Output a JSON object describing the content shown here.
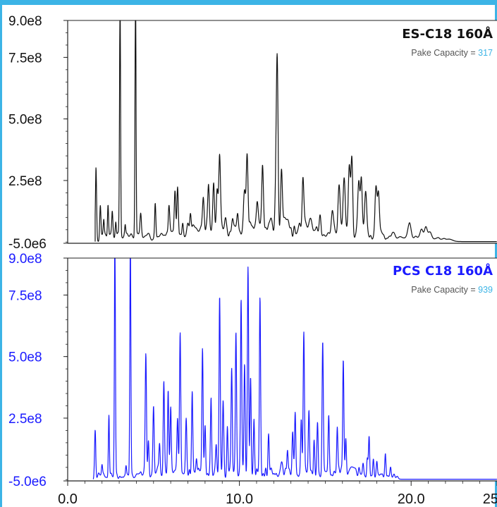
{
  "colors": {
    "frame": "#3cb4e6",
    "series_top": "#111111",
    "series_bottom": "#1a1aff",
    "capacity_value": "#3cb4e6"
  },
  "chart_data": [
    {
      "type": "line",
      "title": "ES-C18 160Å",
      "annotation_label": "Pake Capacity = ",
      "annotation_value": "317",
      "xlim": [
        0,
        25
      ],
      "ylim": [
        -5000000,
        900000000
      ],
      "yticks": [
        -5000000,
        250000000,
        500000000,
        750000000,
        900000000
      ],
      "ytick_labels": [
        "-5.0e6",
        "2.5e8",
        "5.0e8",
        "7.5e8",
        "9.0e8"
      ],
      "ytick_color": "#111111",
      "series": [
        {
          "color": "#111111",
          "baseline": 2000000,
          "x_start": 1.6,
          "x_end": 25,
          "peaks": [
            [
              1.65,
              300000000,
              0.035
            ],
            [
              1.9,
              140000000,
              0.035
            ],
            [
              2.1,
              60000000,
              0.03
            ],
            [
              2.35,
              130000000,
              0.03
            ],
            [
              2.6,
              90000000,
              0.035
            ],
            [
              2.8,
              60000000,
              0.03
            ],
            [
              3.05,
              1000000000,
              0.03
            ],
            [
              3.35,
              40000000,
              0.03
            ],
            [
              3.95,
              1000000000,
              0.03
            ],
            [
              4.25,
              80000000,
              0.04
            ],
            [
              5.1,
              140000000,
              0.035
            ],
            [
              5.9,
              110000000,
              0.04
            ],
            [
              6.25,
              170000000,
              0.04
            ],
            [
              6.4,
              200000000,
              0.04
            ],
            [
              6.7,
              60000000,
              0.04
            ],
            [
              7.15,
              80000000,
              0.04
            ],
            [
              7.9,
              130000000,
              0.05
            ],
            [
              8.2,
              200000000,
              0.05
            ],
            [
              8.5,
              190000000,
              0.05
            ],
            [
              8.7,
              180000000,
              0.05
            ],
            [
              8.85,
              300000000,
              0.05
            ],
            [
              9.2,
              80000000,
              0.05
            ],
            [
              9.6,
              60000000,
              0.05
            ],
            [
              9.9,
              90000000,
              0.05
            ],
            [
              10.3,
              160000000,
              0.06
            ],
            [
              10.45,
              320000000,
              0.05
            ],
            [
              11.05,
              80000000,
              0.06
            ],
            [
              11.35,
              260000000,
              0.05
            ],
            [
              12.1,
              120000000,
              0.05
            ],
            [
              12.2,
              700000000,
              0.05
            ],
            [
              12.45,
              250000000,
              0.05
            ],
            [
              13.7,
              200000000,
              0.05
            ],
            [
              14.7,
              80000000,
              0.05
            ],
            [
              15.4,
              80000000,
              0.06
            ],
            [
              15.8,
              200000000,
              0.06
            ],
            [
              16.1,
              210000000,
              0.06
            ],
            [
              16.4,
              270000000,
              0.06
            ],
            [
              16.55,
              300000000,
              0.05
            ],
            [
              16.95,
              210000000,
              0.06
            ],
            [
              17.1,
              210000000,
              0.05
            ],
            [
              17.35,
              180000000,
              0.06
            ],
            [
              17.95,
              200000000,
              0.06
            ],
            [
              18.1,
              140000000,
              0.05
            ],
            [
              19.9,
              60000000,
              0.1
            ],
            [
              20.6,
              40000000,
              0.08
            ],
            [
              20.85,
              50000000,
              0.08
            ],
            [
              21.1,
              25000000,
              0.1
            ],
            [
              22.2,
              10000000,
              0.2
            ]
          ],
          "noise": [
            [
              2.0,
              7.0,
              25000000,
              0.08
            ],
            [
              7.0,
              14.5,
              60000000,
              0.08
            ],
            [
              14.5,
              19.0,
              35000000,
              0.08
            ],
            [
              19.0,
              22.0,
              12000000,
              0.1
            ]
          ]
        }
      ]
    },
    {
      "type": "line",
      "title": "PCS C18 160Å",
      "annotation_label": "Pake Capacity = ",
      "annotation_value": "939",
      "xlim": [
        0,
        25
      ],
      "ylim": [
        -5000000,
        900000000
      ],
      "yticks": [
        -5000000,
        250000000,
        500000000,
        750000000,
        900000000
      ],
      "ytick_labels": [
        "-5.0e6",
        "2.5e8",
        "5.0e8",
        "7.5e8",
        "9.0e8"
      ],
      "ytick_color": "#1a1aff",
      "xticks": [
        0,
        10,
        20,
        25
      ],
      "xtick_labels": [
        "0.0",
        "10.0",
        "20.0",
        "25"
      ],
      "series": [
        {
          "color": "#1a1aff",
          "baseline": 2000000,
          "x_start": 1.5,
          "x_end": 25,
          "peaks": [
            [
              1.6,
              200000000,
              0.035
            ],
            [
              2.0,
              40000000,
              0.03
            ],
            [
              2.4,
              250000000,
              0.03
            ],
            [
              2.75,
              1000000000,
              0.03
            ],
            [
              3.4,
              40000000,
              0.03
            ],
            [
              3.65,
              1000000000,
              0.03
            ],
            [
              4.55,
              460000000,
              0.035
            ],
            [
              4.7,
              150000000,
              0.035
            ],
            [
              5.0,
              250000000,
              0.035
            ],
            [
              5.35,
              120000000,
              0.035
            ],
            [
              5.6,
              370000000,
              0.035
            ],
            [
              5.85,
              350000000,
              0.035
            ],
            [
              6.0,
              250000000,
              0.035
            ],
            [
              6.4,
              230000000,
              0.035
            ],
            [
              6.55,
              570000000,
              0.035
            ],
            [
              6.9,
              200000000,
              0.035
            ],
            [
              7.25,
              310000000,
              0.035
            ],
            [
              7.5,
              60000000,
              0.035
            ],
            [
              7.85,
              500000000,
              0.035
            ],
            [
              8.0,
              200000000,
              0.035
            ],
            [
              8.35,
              300000000,
              0.035
            ],
            [
              8.65,
              100000000,
              0.035
            ],
            [
              8.85,
              720000000,
              0.035
            ],
            [
              9.05,
              300000000,
              0.035
            ],
            [
              9.3,
              200000000,
              0.035
            ],
            [
              9.55,
              420000000,
              0.035
            ],
            [
              9.8,
              560000000,
              0.035
            ],
            [
              10.1,
              690000000,
              0.035
            ],
            [
              10.3,
              440000000,
              0.035
            ],
            [
              10.5,
              830000000,
              0.035
            ],
            [
              10.65,
              400000000,
              0.035
            ],
            [
              10.85,
              200000000,
              0.035
            ],
            [
              11.2,
              720000000,
              0.035
            ],
            [
              11.7,
              140000000,
              0.035
            ],
            [
              12.8,
              100000000,
              0.035
            ],
            [
              13.1,
              160000000,
              0.035
            ],
            [
              13.25,
              250000000,
              0.035
            ],
            [
              13.6,
              230000000,
              0.035
            ],
            [
              13.75,
              550000000,
              0.035
            ],
            [
              14.05,
              250000000,
              0.035
            ],
            [
              14.35,
              150000000,
              0.035
            ],
            [
              14.55,
              220000000,
              0.035
            ],
            [
              14.85,
              530000000,
              0.035
            ],
            [
              15.2,
              230000000,
              0.035
            ],
            [
              15.7,
              200000000,
              0.035
            ],
            [
              16.05,
              470000000,
              0.035
            ],
            [
              16.2,
              120000000,
              0.035
            ],
            [
              17.2,
              50000000,
              0.035
            ],
            [
              17.45,
              70000000,
              0.035
            ],
            [
              17.55,
              170000000,
              0.035
            ],
            [
              17.8,
              80000000,
              0.035
            ],
            [
              18.0,
              60000000,
              0.035
            ],
            [
              18.5,
              100000000,
              0.035
            ],
            [
              18.8,
              40000000,
              0.035
            ]
          ],
          "noise": [
            [
              1.8,
              4.5,
              20000000,
              0.06
            ],
            [
              4.5,
              12.5,
              40000000,
              0.06
            ],
            [
              12.5,
              17.0,
              40000000,
              0.06
            ],
            [
              17.0,
              19.2,
              20000000,
              0.06
            ]
          ]
        }
      ]
    }
  ]
}
